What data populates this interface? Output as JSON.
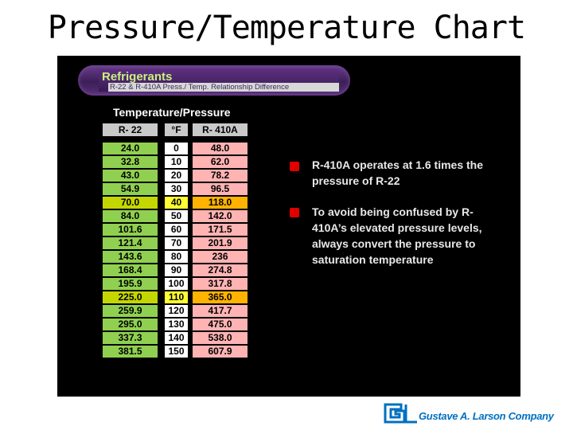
{
  "slide_title": "Pressure/Temperature Chart",
  "banner": {
    "title": "Refrigerants",
    "subtitle": "R-22 & R-410A Press./ Temp. Relationship Difference"
  },
  "table": {
    "title": "Temperature/Pressure",
    "headers": [
      "R- 22",
      "°F",
      "R- 410A"
    ],
    "rows": [
      {
        "r22": "24.0",
        "f": "0",
        "r410a": "48.0",
        "highlight": false
      },
      {
        "r22": "32.8",
        "f": "10",
        "r410a": "62.0",
        "highlight": false
      },
      {
        "r22": "43.0",
        "f": "20",
        "r410a": "78.2",
        "highlight": false
      },
      {
        "r22": "54.9",
        "f": "30",
        "r410a": "96.5",
        "highlight": false
      },
      {
        "r22": "70.0",
        "f": "40",
        "r410a": "118.0",
        "highlight": true
      },
      {
        "r22": "84.0",
        "f": "50",
        "r410a": "142.0",
        "highlight": false
      },
      {
        "r22": "101.6",
        "f": "60",
        "r410a": "171.5",
        "highlight": false
      },
      {
        "r22": "121.4",
        "f": "70",
        "r410a": "201.9",
        "highlight": false
      },
      {
        "r22": "143.6",
        "f": "80",
        "r410a": "236",
        "highlight": false
      },
      {
        "r22": "168.4",
        "f": "90",
        "r410a": "274.8",
        "highlight": false
      },
      {
        "r22": "195.9",
        "f": "100",
        "r410a": "317.8",
        "highlight": false
      },
      {
        "r22": "225.0",
        "f": "110",
        "r410a": "365.0",
        "highlight": true
      },
      {
        "r22": "259.9",
        "f": "120",
        "r410a": "417.7",
        "highlight": false
      },
      {
        "r22": "295.0",
        "f": "130",
        "r410a": "475.0",
        "highlight": false
      },
      {
        "r22": "337.3",
        "f": "140",
        "r410a": "538.0",
        "highlight": false
      },
      {
        "r22": "381.5",
        "f": "150",
        "r410a": "607.9",
        "highlight": false
      }
    ],
    "colors": {
      "r22": "#90d050",
      "r22_hl": "#c4d600",
      "f": "#ffffff",
      "f_hl": "#ffff33",
      "r410a": "#ffb3b3",
      "r410a_hl": "#ffb300",
      "header": "#c9c9c9"
    }
  },
  "bullets": [
    "R-410A operates at 1.6 times the pressure of R-22",
    "To avoid being confused by R-410A’s elevated pressure levels, always convert the pressure to saturation temperature"
  ],
  "logo": {
    "text": "Gustave A. Larson Company",
    "color": "#0070c0",
    "icon": "gal-logo-icon"
  }
}
